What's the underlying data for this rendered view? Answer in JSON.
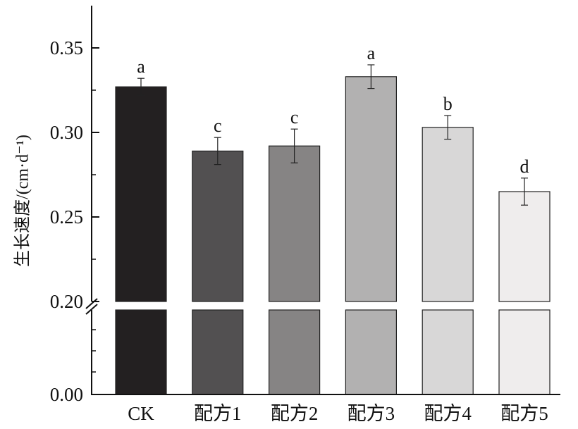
{
  "chart_data": {
    "type": "bar",
    "title": "",
    "xlabel": "",
    "ylabel": "生长速度/(cm·d⁻¹)",
    "axis_break": {
      "lower": 0.0,
      "upper": 0.2
    },
    "ylim": [
      0.2,
      0.37
    ],
    "yticks": [
      {
        "value": 0.35,
        "label": "0.35"
      },
      {
        "value": 0.3,
        "label": "0.30"
      },
      {
        "value": 0.25,
        "label": "0.25"
      },
      {
        "value": 0.2,
        "label": "0.20"
      },
      {
        "value": 0.0,
        "label": "0.00"
      }
    ],
    "categories": [
      "CK",
      "配方1",
      "配方2",
      "配方3",
      "配方4",
      "配方5"
    ],
    "values": [
      0.327,
      0.289,
      0.292,
      0.333,
      0.303,
      0.265
    ],
    "errors": [
      0.005,
      0.008,
      0.01,
      0.007,
      0.007,
      0.008
    ],
    "significance": [
      "a",
      "c",
      "c",
      "a",
      "b",
      "d"
    ],
    "colors": [
      "#232021",
      "#525051",
      "#868484",
      "#b2b1b1",
      "#d8d7d7",
      "#efeded"
    ]
  }
}
